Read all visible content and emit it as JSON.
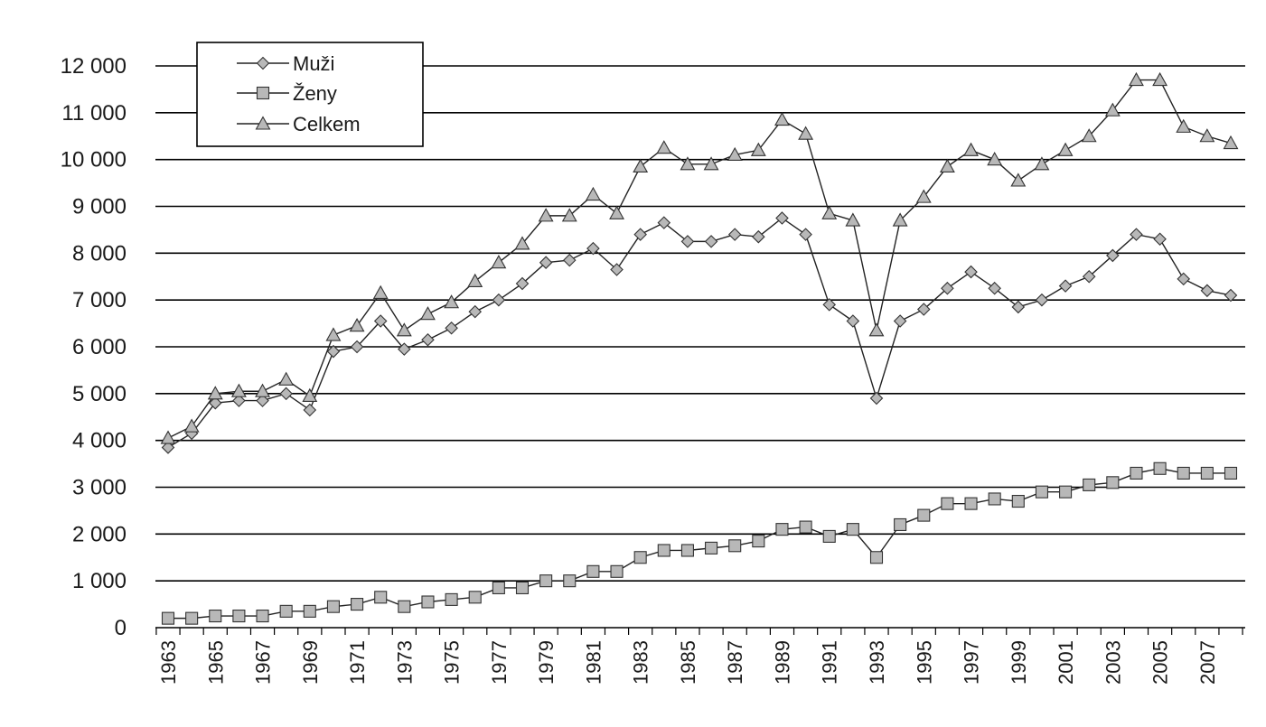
{
  "chart_data": {
    "type": "line",
    "title": "",
    "xlabel": "",
    "ylabel": "",
    "ylim": [
      0,
      12000
    ],
    "y_ticks": [
      0,
      1000,
      2000,
      3000,
      4000,
      5000,
      6000,
      7000,
      8000,
      9000,
      10000,
      11000,
      12000
    ],
    "y_tick_labels": [
      "0",
      "1 000",
      "2 000",
      "3 000",
      "4 000",
      "5 000",
      "6 000",
      "7 000",
      "8 000",
      "9 000",
      "10 000",
      "11 000",
      "12 000"
    ],
    "x": [
      1963,
      1964,
      1965,
      1966,
      1967,
      1968,
      1969,
      1970,
      1971,
      1972,
      1973,
      1974,
      1975,
      1976,
      1977,
      1978,
      1979,
      1980,
      1981,
      1982,
      1983,
      1984,
      1985,
      1986,
      1987,
      1988,
      1989,
      1990,
      1991,
      1992,
      1993,
      1994,
      1995,
      1996,
      1997,
      1998,
      1999,
      2000,
      2001,
      2002,
      2003,
      2004,
      2005,
      2006,
      2007,
      2008
    ],
    "x_tick_labels": [
      "1963",
      "1965",
      "1967",
      "1969",
      "1971",
      "1973",
      "1975",
      "1977",
      "1979",
      "1981",
      "1983",
      "1985",
      "1987",
      "1989",
      "1991",
      "1993",
      "1995",
      "1997",
      "1999",
      "2001",
      "2003",
      "2005",
      "2007"
    ],
    "grid": "horizontal",
    "legend_position": "top-left",
    "series": [
      {
        "name": "Muži",
        "marker": "diamond",
        "values": [
          3850,
          4150,
          4800,
          4850,
          4850,
          5000,
          4650,
          5900,
          6000,
          6550,
          5950,
          6150,
          6400,
          6750,
          7000,
          7350,
          7800,
          7850,
          8100,
          7650,
          8400,
          8650,
          8250,
          8250,
          8400,
          8350,
          8750,
          8400,
          6900,
          6550,
          4900,
          6550,
          6800,
          7250,
          7600,
          7250,
          6850,
          7000,
          7300,
          7500,
          7950,
          8400,
          8300,
          7450,
          7200,
          7100
        ]
      },
      {
        "name": "Ženy",
        "marker": "square",
        "values": [
          200,
          200,
          250,
          250,
          250,
          350,
          350,
          450,
          500,
          650,
          450,
          550,
          600,
          650,
          850,
          850,
          1000,
          1000,
          1200,
          1200,
          1500,
          1650,
          1650,
          1700,
          1750,
          1850,
          2100,
          2150,
          1950,
          2100,
          1500,
          2200,
          2400,
          2650,
          2650,
          2750,
          2700,
          2900,
          2900,
          3050,
          3100,
          3300,
          3400,
          3300,
          3300,
          3300
        ]
      },
      {
        "name": "Celkem",
        "marker": "triangle",
        "values": [
          4050,
          4300,
          5000,
          5050,
          5050,
          5300,
          4950,
          6250,
          6450,
          7150,
          6350,
          6700,
          6950,
          7400,
          7800,
          8200,
          8800,
          8800,
          9250,
          8850,
          9850,
          10250,
          9900,
          9900,
          10100,
          10200,
          10850,
          10550,
          8850,
          8700,
          6350,
          8700,
          9200,
          9850,
          10200,
          10000,
          9550,
          9900,
          10200,
          10500,
          11050,
          11700,
          11700,
          10700,
          10500,
          10350
        ]
      }
    ]
  }
}
